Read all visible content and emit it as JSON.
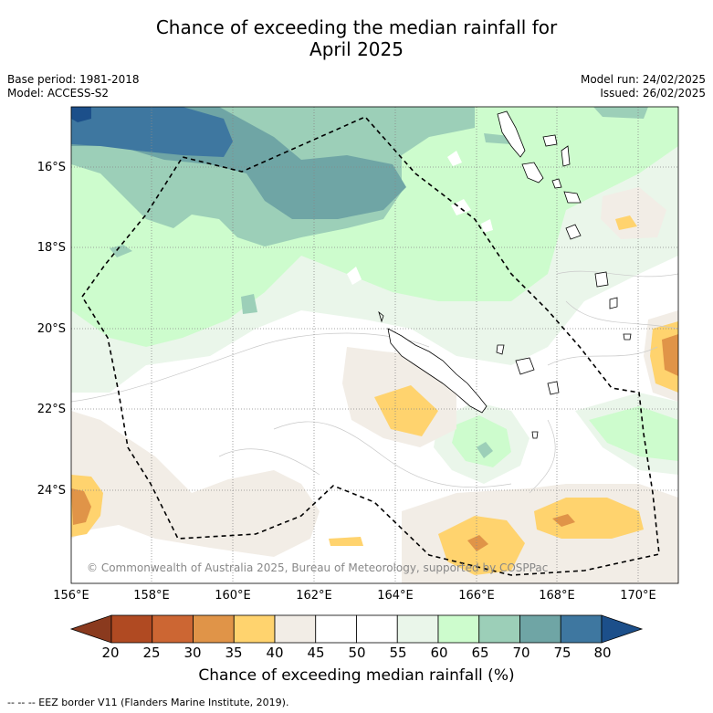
{
  "title_line1": "Chance of exceeding the median rainfall for",
  "title_line2": "April 2025",
  "base_period": "Base period: 1981-2018",
  "model": "Model: ACCESS-S2",
  "model_run": "Model run: 24/02/2025",
  "issued": "Issued: 26/02/2025",
  "lat_labels": [
    "16°S",
    "18°S",
    "20°S",
    "22°S",
    "24°S"
  ],
  "lon_labels": [
    "156°E",
    "158°E",
    "160°E",
    "162°E",
    "164°E",
    "166°E",
    "168°E",
    "170°E"
  ],
  "colorbar": {
    "ticks": [
      "20",
      "25",
      "30",
      "35",
      "40",
      "45",
      "50",
      "55",
      "60",
      "65",
      "70",
      "75",
      "80"
    ],
    "colors": [
      "#8a3a1e",
      "#b04a22",
      "#cc6633",
      "#e09448",
      "#ffd36e",
      "#f2ede6",
      "#ffffff",
      "#ffffff",
      "#eaf6ea",
      "#cdfccd",
      "#9ccfb8",
      "#6fa5a5",
      "#3e77a0",
      "#1c4f8a"
    ],
    "title": "Chance of exceeding median rainfall (%)"
  },
  "copyright": "© Commonwealth of Australia 2025, Bureau of Meteorology, supported by COSPPac",
  "footnote": "--  --  -- EEZ border V11 (Flanders Marine Institute, 2019)."
}
